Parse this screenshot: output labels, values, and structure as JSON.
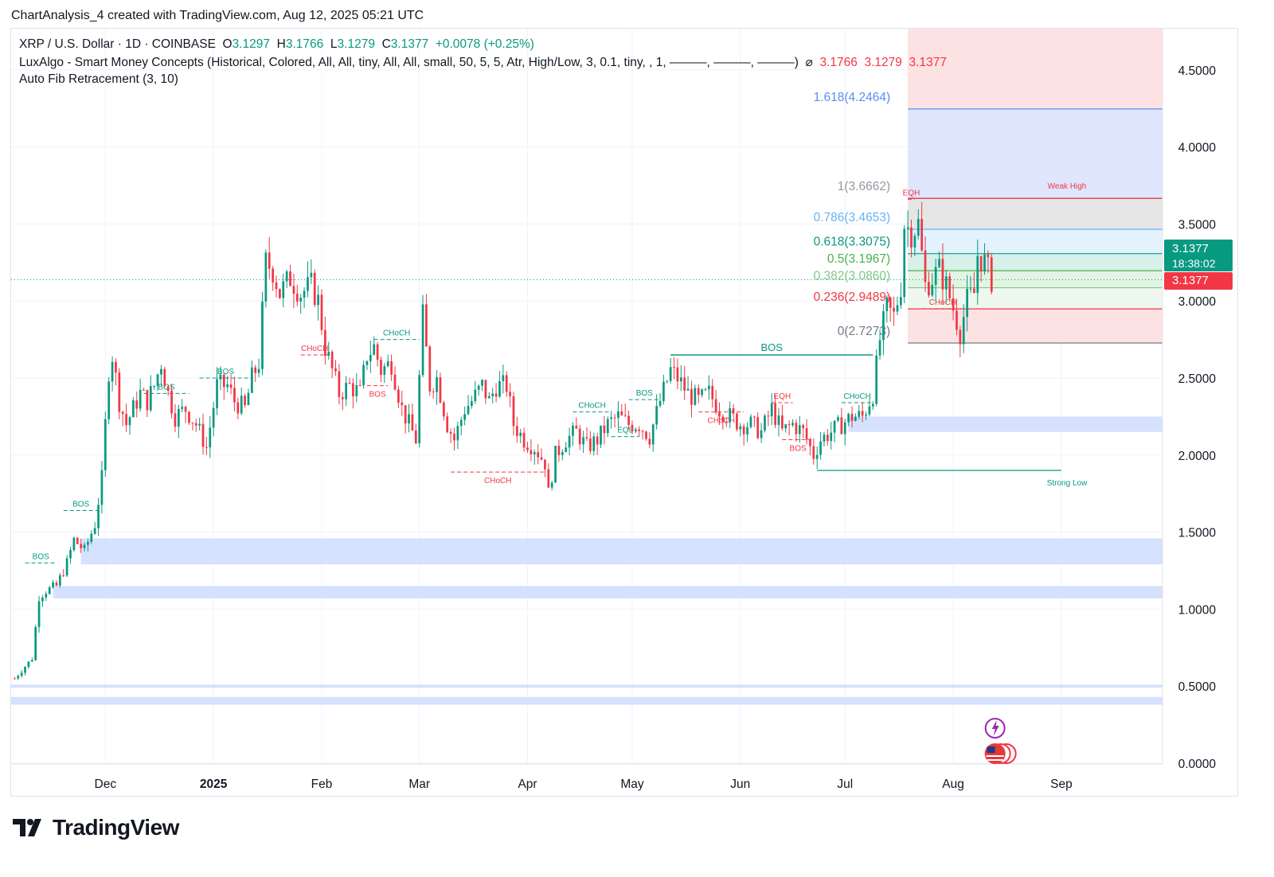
{
  "header": {
    "text": "ChartAnalysis_4 created with TradingView.com, Aug 12, 2025 05:21 UTC"
  },
  "legend": {
    "symbol": "XRP / U.S. Dollar · 1D · COINBASE",
    "o_label": "O",
    "o_value": "3.1297",
    "h_label": "H",
    "h_value": "3.1766",
    "l_label": "L",
    "l_value": "3.1279",
    "c_label": "C",
    "c_value": "3.1377",
    "change": "+0.0078 (+0.25%)",
    "indicator1": "LuxAlgo - Smart Money Concepts (Historical, Colored, All, All, tiny, All, All, small, 50, 5, 5, Atr, High/Low, 3, 0.1, tiny, , 1, ———, ———, ———)",
    "indicator1_values": [
      "3.1766",
      "3.1279",
      "3.1377"
    ],
    "indicator2": "Auto Fib Retracement (3, 10)"
  },
  "price_tag": {
    "last": "3.1377",
    "countdown": "18:38:02",
    "close": "3.1377"
  },
  "brand": {
    "name": "TradingView"
  },
  "colors": {
    "up": "#089981",
    "down": "#f23645",
    "zone": "#d1deff",
    "fib_blue": "#5b8def",
    "fib_green": "#089981",
    "fib_red": "#f23645"
  },
  "chart_data": {
    "type": "candlestick",
    "y_axis": {
      "min": 0,
      "max": 4.8,
      "ticks": [
        "0.0000",
        "0.5000",
        "1.0000",
        "1.5000",
        "2.0000",
        "2.5000",
        "3.0000",
        "3.5000",
        "4.0000",
        "4.5000"
      ]
    },
    "x_axis": {
      "start": "2024-11-04",
      "end": "2025-09-30",
      "labels": [
        {
          "date": "2024-12-01",
          "text": "Dec",
          "bold": false
        },
        {
          "date": "2025-01-01",
          "text": "2025",
          "bold": true
        },
        {
          "date": "2025-02-01",
          "text": "Feb",
          "bold": false
        },
        {
          "date": "2025-03-01",
          "text": "Mar",
          "bold": false
        },
        {
          "date": "2025-04-01",
          "text": "Apr",
          "bold": false
        },
        {
          "date": "2025-05-01",
          "text": "May",
          "bold": false
        },
        {
          "date": "2025-06-01",
          "text": "Jun",
          "bold": false
        },
        {
          "date": "2025-07-01",
          "text": "Jul",
          "bold": false
        },
        {
          "date": "2025-08-01",
          "text": "Aug",
          "bold": false
        },
        {
          "date": "2025-09-01",
          "text": "Sep",
          "bold": false
        }
      ]
    },
    "price_series": [
      [
        "2024-11-05",
        0.55
      ],
      [
        "2024-11-10",
        0.68
      ],
      [
        "2024-11-12",
        1.08
      ],
      [
        "2024-11-14",
        1.12
      ],
      [
        "2024-11-17",
        1.15
      ],
      [
        "2024-11-20",
        1.3
      ],
      [
        "2024-11-22",
        1.45
      ],
      [
        "2024-11-25",
        1.38
      ],
      [
        "2024-11-28",
        1.55
      ],
      [
        "2024-11-30",
        1.85
      ],
      [
        "2024-12-02",
        2.55
      ],
      [
        "2024-12-03",
        2.65
      ],
      [
        "2024-12-05",
        2.35
      ],
      [
        "2024-12-07",
        2.2
      ],
      [
        "2024-12-09",
        2.3
      ],
      [
        "2024-12-11",
        2.4
      ],
      [
        "2024-12-13",
        2.35
      ],
      [
        "2024-12-15",
        2.45
      ],
      [
        "2024-12-17",
        2.6
      ],
      [
        "2024-12-19",
        2.4
      ],
      [
        "2024-12-21",
        2.25
      ],
      [
        "2024-12-24",
        2.3
      ],
      [
        "2024-12-27",
        2.2
      ],
      [
        "2024-12-30",
        2.05
      ],
      [
        "2025-01-02",
        2.45
      ],
      [
        "2025-01-05",
        2.45
      ],
      [
        "2025-01-07",
        2.35
      ],
      [
        "2025-01-10",
        2.3
      ],
      [
        "2025-01-12",
        2.5
      ],
      [
        "2025-01-14",
        2.6
      ],
      [
        "2025-01-16",
        3.25
      ],
      [
        "2025-01-18",
        3.2
      ],
      [
        "2025-01-20",
        3.05
      ],
      [
        "2025-01-23",
        3.15
      ],
      [
        "2025-01-26",
        3.05
      ],
      [
        "2025-01-29",
        3.1
      ],
      [
        "2025-01-31",
        3.0
      ],
      [
        "2025-02-02",
        2.7
      ],
      [
        "2025-02-04",
        2.55
      ],
      [
        "2025-02-06",
        2.4
      ],
      [
        "2025-02-09",
        2.45
      ],
      [
        "2025-02-12",
        2.4
      ],
      [
        "2025-02-14",
        2.65
      ],
      [
        "2025-02-16",
        2.7
      ],
      [
        "2025-02-18",
        2.55
      ],
      [
        "2025-02-21",
        2.6
      ],
      [
        "2025-02-24",
        2.3
      ],
      [
        "2025-02-26",
        2.2
      ],
      [
        "2025-02-28",
        2.1
      ],
      [
        "2025-03-02",
        2.9
      ],
      [
        "2025-03-04",
        2.45
      ],
      [
        "2025-03-06",
        2.5
      ],
      [
        "2025-03-09",
        2.2
      ],
      [
        "2025-03-11",
        2.1
      ],
      [
        "2025-03-14",
        2.3
      ],
      [
        "2025-03-16",
        2.35
      ],
      [
        "2025-03-19",
        2.45
      ],
      [
        "2025-03-21",
        2.35
      ],
      [
        "2025-03-23",
        2.45
      ],
      [
        "2025-03-26",
        2.45
      ],
      [
        "2025-03-28",
        2.2
      ],
      [
        "2025-03-31",
        2.1
      ],
      [
        "2025-04-03",
        2.05
      ],
      [
        "2025-04-06",
        1.95
      ],
      [
        "2025-04-07",
        1.75
      ],
      [
        "2025-04-09",
        2.0
      ],
      [
        "2025-04-12",
        2.1
      ],
      [
        "2025-04-15",
        2.15
      ],
      [
        "2025-04-18",
        2.05
      ],
      [
        "2025-04-21",
        2.1
      ],
      [
        "2025-04-24",
        2.2
      ],
      [
        "2025-04-27",
        2.25
      ],
      [
        "2025-04-30",
        2.2
      ],
      [
        "2025-05-03",
        2.2
      ],
      [
        "2025-05-06",
        2.12
      ],
      [
        "2025-05-09",
        2.35
      ],
      [
        "2025-05-12",
        2.55
      ],
      [
        "2025-05-14",
        2.5
      ],
      [
        "2025-05-17",
        2.4
      ],
      [
        "2025-05-20",
        2.35
      ],
      [
        "2025-05-23",
        2.4
      ],
      [
        "2025-05-26",
        2.3
      ],
      [
        "2025-05-29",
        2.25
      ],
      [
        "2025-06-01",
        2.2
      ],
      [
        "2025-06-04",
        2.2
      ],
      [
        "2025-06-07",
        2.15
      ],
      [
        "2025-06-10",
        2.3
      ],
      [
        "2025-06-13",
        2.15
      ],
      [
        "2025-06-16",
        2.2
      ],
      [
        "2025-06-19",
        2.15
      ],
      [
        "2025-06-22",
        2.0
      ],
      [
        "2025-06-24",
        2.1
      ],
      [
        "2025-06-27",
        2.15
      ],
      [
        "2025-06-30",
        2.2
      ],
      [
        "2025-07-03",
        2.25
      ],
      [
        "2025-07-06",
        2.25
      ],
      [
        "2025-07-09",
        2.4
      ],
      [
        "2025-07-11",
        2.75
      ],
      [
        "2025-07-13",
        2.95
      ],
      [
        "2025-07-15",
        2.9
      ],
      [
        "2025-07-17",
        3.1
      ],
      [
        "2025-07-18",
        3.5
      ],
      [
        "2025-07-20",
        3.45
      ],
      [
        "2025-07-22",
        3.5
      ],
      [
        "2025-07-24",
        3.1
      ],
      [
        "2025-07-26",
        3.15
      ],
      [
        "2025-07-28",
        3.2
      ],
      [
        "2025-07-30",
        3.1
      ],
      [
        "2025-08-01",
        2.95
      ],
      [
        "2025-08-03",
        2.8
      ],
      [
        "2025-08-05",
        3.0
      ],
      [
        "2025-08-07",
        3.05
      ],
      [
        "2025-08-08",
        3.3
      ],
      [
        "2025-08-10",
        3.25
      ],
      [
        "2025-08-12",
        3.14
      ]
    ],
    "fib_levels": [
      {
        "ratio": "1.618",
        "price": 4.2464,
        "label": "1.618(4.2464)",
        "color": "#5b8def"
      },
      {
        "ratio": "1",
        "price": 3.6662,
        "label": "1(3.6662)",
        "color": "#9598a1"
      },
      {
        "ratio": "0.786",
        "price": 3.4653,
        "label": "0.786(3.4653)",
        "color": "#64b5f6"
      },
      {
        "ratio": "0.618",
        "price": 3.3075,
        "label": "0.618(3.3075)",
        "color": "#089981"
      },
      {
        "ratio": "0.5",
        "price": 3.1967,
        "label": "0.5(3.1967)",
        "color": "#4caf50"
      },
      {
        "ratio": "0.382",
        "price": 3.086,
        "label": "0.382(3.0860)",
        "color": "#81c784"
      },
      {
        "ratio": "0.236",
        "price": 2.9489,
        "label": "0.236(2.9489)",
        "color": "#f23645"
      },
      {
        "ratio": "0",
        "price": 2.7273,
        "label": "0(2.7273)",
        "color": "#787b86"
      }
    ],
    "fib_range": {
      "start": "2025-07-19",
      "end": "2025-09-30"
    },
    "zones": [
      {
        "top": 2.25,
        "bottom": 2.15,
        "start": "2025-07-02",
        "end": "2025-09-30"
      },
      {
        "top": 1.46,
        "bottom": 1.29,
        "start": "2024-11-24",
        "end": "2025-09-30"
      },
      {
        "top": 1.15,
        "bottom": 1.07,
        "start": "2024-11-16",
        "end": "2025-09-30"
      },
      {
        "top": 0.51,
        "bottom": 0.49,
        "start": "2024-11-04",
        "end": "2025-09-30"
      },
      {
        "top": 0.43,
        "bottom": 0.38,
        "start": "2024-11-04",
        "end": "2025-09-30"
      }
    ],
    "structure": [
      {
        "text": "BOS",
        "price": 1.3,
        "start": "2024-11-08",
        "end": "2024-11-17",
        "color": "#089981",
        "dashed": true,
        "label_size": 10
      },
      {
        "text": "BOS",
        "price": 1.64,
        "start": "2024-11-19",
        "end": "2024-11-29",
        "color": "#089981",
        "dashed": true,
        "label_size": 10
      },
      {
        "text": "BOS",
        "price": 2.4,
        "start": "2024-12-12",
        "end": "2024-12-25",
        "color": "#089981",
        "dashed": true,
        "label_size": 10
      },
      {
        "text": "BOS",
        "price": 2.5,
        "start": "2024-12-28",
        "end": "2025-01-12",
        "color": "#089981",
        "dashed": true,
        "label_size": 10
      },
      {
        "text": "CHoCH",
        "price": 2.65,
        "start": "2025-01-26",
        "end": "2025-02-03",
        "color": "#f23645",
        "dashed": true,
        "label_size": 10
      },
      {
        "text": "BOS",
        "price": 2.45,
        "start": "2025-02-14",
        "end": "2025-02-20",
        "color": "#f23645",
        "dashed": true,
        "label_size": 10
      },
      {
        "text": "CHoCH",
        "price": 2.75,
        "start": "2025-02-16",
        "end": "2025-03-01",
        "color": "#089981",
        "dashed": true,
        "label_size": 10
      },
      {
        "text": "CHoCH",
        "price": 1.89,
        "start": "2025-03-10",
        "end": "2025-04-06",
        "color": "#f23645",
        "dashed": true,
        "label_size": 10
      },
      {
        "text": "CHoCH",
        "price": 2.28,
        "start": "2025-04-14",
        "end": "2025-04-25",
        "color": "#089981",
        "dashed": true,
        "label_size": 10
      },
      {
        "text": "EQL",
        "price": 2.12,
        "start": "2025-04-25",
        "end": "2025-05-03",
        "color": "#089981",
        "dashed": true,
        "label_size": 10
      },
      {
        "text": "BOS",
        "price": 2.36,
        "start": "2025-04-30",
        "end": "2025-05-09",
        "color": "#089981",
        "dashed": true,
        "label_size": 10
      },
      {
        "text": "BOS",
        "price": 2.65,
        "start": "2025-05-12",
        "end": "2025-07-09",
        "color": "#089981",
        "dashed": false,
        "label_size": 13
      },
      {
        "text": "CHoCH",
        "price": 2.28,
        "start": "2025-05-20",
        "end": "2025-06-02",
        "color": "#f23645",
        "dashed": true,
        "label_size": 10
      },
      {
        "text": "EQH",
        "price": 2.34,
        "start": "2025-06-10",
        "end": "2025-06-16",
        "color": "#f23645",
        "dashed": true,
        "label_size": 10
      },
      {
        "text": "BOS",
        "price": 2.1,
        "start": "2025-06-13",
        "end": "2025-06-22",
        "color": "#f23645",
        "dashed": true,
        "label_size": 10
      },
      {
        "text": "CHoCH",
        "price": 2.34,
        "start": "2025-06-30",
        "end": "2025-07-09",
        "color": "#089981",
        "dashed": true,
        "label_size": 10
      },
      {
        "text": "CHoCH",
        "price": 2.95,
        "start": "2025-07-23",
        "end": "2025-08-04",
        "color": "#f23645",
        "dashed": true,
        "label_size": 10
      },
      {
        "text": "EQH",
        "price": 3.66,
        "start": "2025-07-19",
        "end": "2025-07-21",
        "color": "#f23645",
        "dashed": true,
        "label_size": 10
      }
    ],
    "levels": [
      {
        "text": "Weak High",
        "price": 3.6662,
        "start": "2025-07-19",
        "end": "2025-09-30",
        "color": "#f23645"
      },
      {
        "text": "Strong Low",
        "price": 1.9,
        "start": "2025-06-23",
        "end": "2025-09-01",
        "color": "#089981"
      }
    ],
    "last_price": 3.1377
  }
}
